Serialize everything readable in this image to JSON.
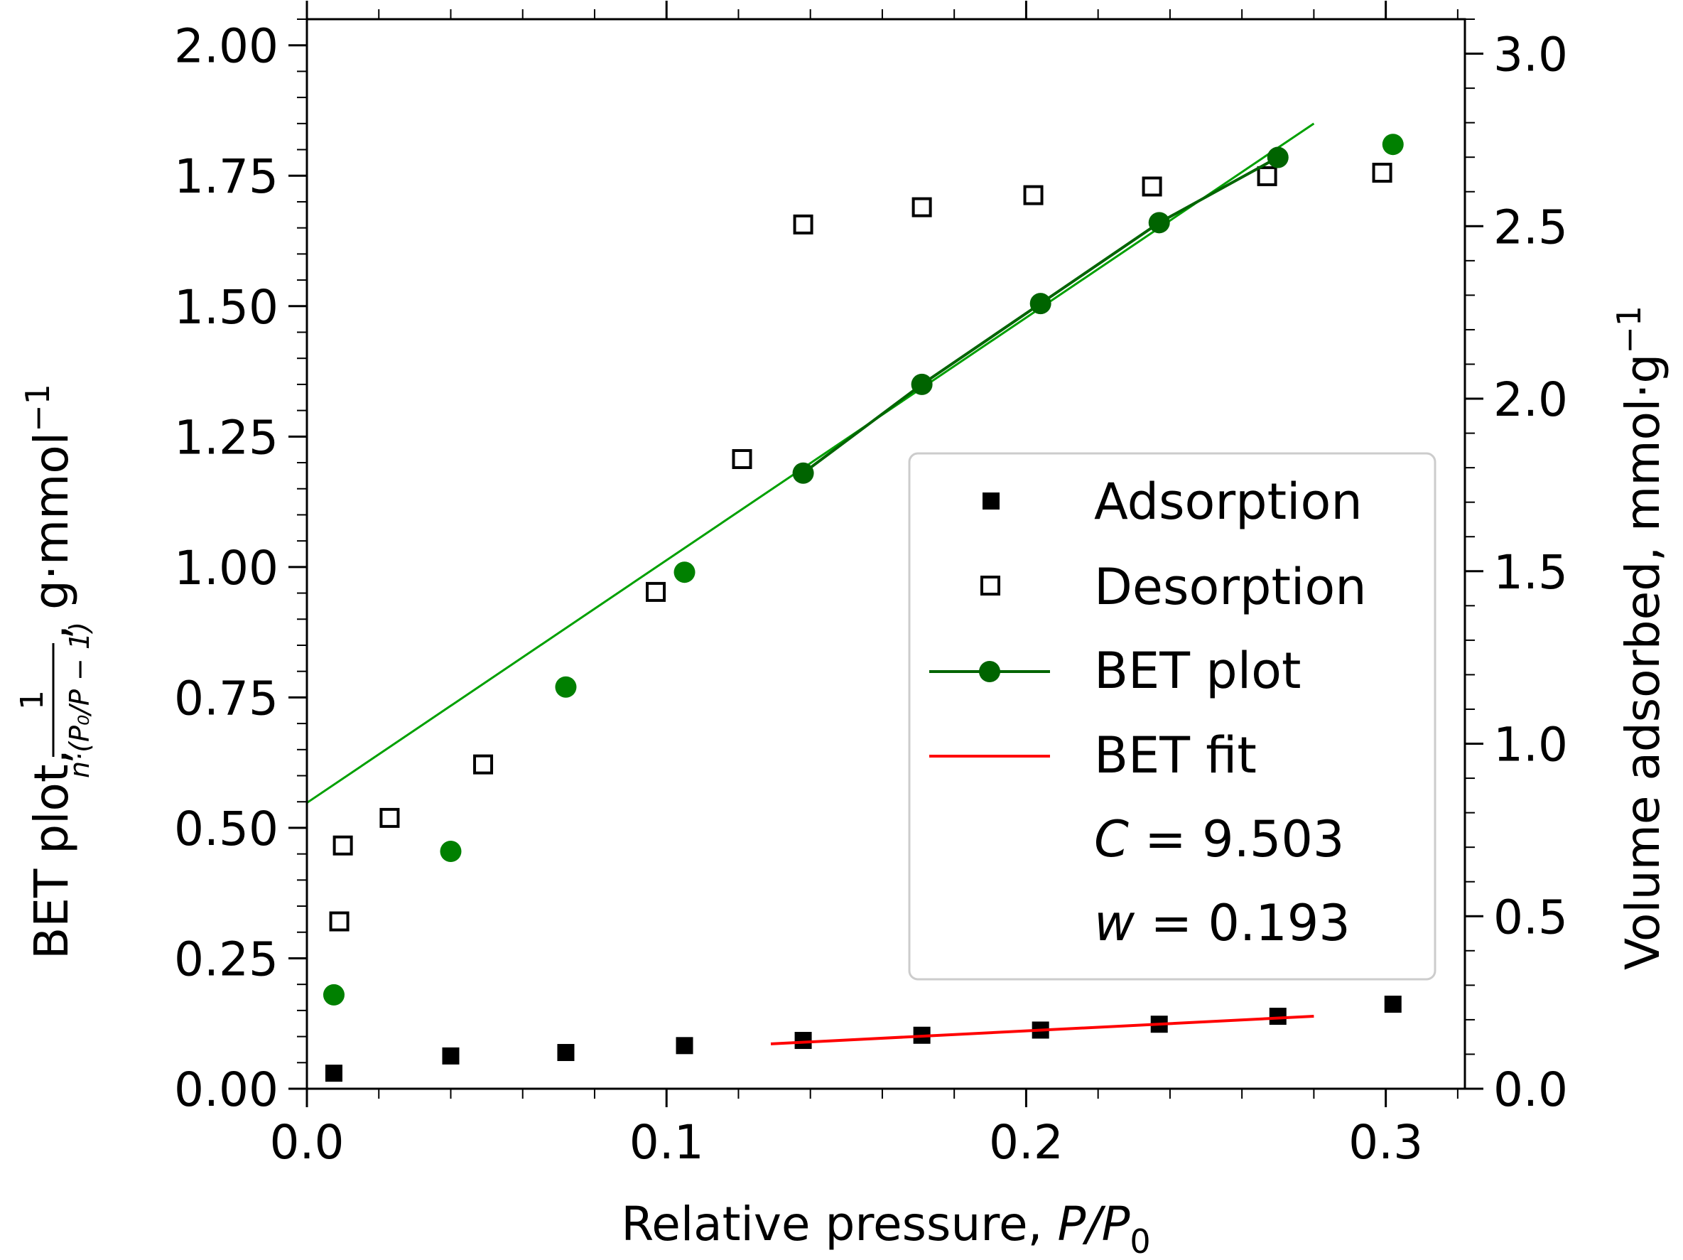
{
  "chart_data": {
    "type": "scatter",
    "xlabel_text": "Relative pressure, ",
    "xlabel_var": "P/P",
    "xlabel_sub": "0",
    "ylabel_left_text": "BET plot, ",
    "ylabel_left_frac_num": "1",
    "ylabel_left_frac_den": "n·(P₀/P − 1)",
    "ylabel_left_unit": ", g·mmol",
    "ylabel_left_sup": "−1",
    "ylabel_right_text": "Volume adsorbed, mmol·g",
    "ylabel_right_sup": "−1",
    "xlim": [
      0.0,
      0.322
    ],
    "ylim_left": [
      0.0,
      2.05
    ],
    "ylim_right": [
      0.0,
      3.1
    ],
    "x_ticks": [
      "0.0",
      "0.1",
      "0.2",
      "0.3"
    ],
    "x_tick_values": [
      0.0,
      0.1,
      0.2,
      0.3
    ],
    "y_left_ticks": [
      "0.00",
      "0.25",
      "0.50",
      "0.75",
      "1.00",
      "1.25",
      "1.50",
      "1.75",
      "2.00"
    ],
    "y_left_tick_values": [
      0.0,
      0.25,
      0.5,
      0.75,
      1.0,
      1.25,
      1.5,
      1.75,
      2.0
    ],
    "y_right_ticks": [
      "0.0",
      "0.5",
      "1.0",
      "1.5",
      "2.0",
      "2.5",
      "3.0"
    ],
    "y_right_tick_values": [
      0.0,
      0.5,
      1.0,
      1.5,
      2.0,
      2.5,
      3.0
    ],
    "series": [
      {
        "name": "Adsorption",
        "axis": "right",
        "marker": "filled-square",
        "color": "#000000",
        "x": [
          0.0075,
          0.04,
          0.072,
          0.105,
          0.138,
          0.171,
          0.204,
          0.237,
          0.27,
          0.302
        ],
        "y": [
          0.045,
          0.095,
          0.105,
          0.125,
          0.14,
          0.155,
          0.17,
          0.187,
          0.21,
          0.245
        ]
      },
      {
        "name": "Desorption",
        "axis": "right",
        "marker": "open-square",
        "color": "#000000",
        "x": [
          0.009,
          0.01,
          0.023,
          0.049,
          0.097,
          0.121,
          0.138,
          0.171,
          0.202,
          0.235,
          0.267,
          0.299
        ],
        "y": [
          0.485,
          0.705,
          0.785,
          0.94,
          1.44,
          1.825,
          2.505,
          2.555,
          2.59,
          2.615,
          2.645,
          2.655
        ]
      },
      {
        "name": "BET plot",
        "axis": "left",
        "marker": "filled-circle",
        "color": "#008000",
        "line_color": "#006400",
        "x": [
          0.0075,
          0.04,
          0.072,
          0.105,
          0.138,
          0.171,
          0.204,
          0.237,
          0.27,
          0.302
        ],
        "y": [
          0.18,
          0.455,
          0.77,
          0.99,
          1.18,
          1.35,
          1.505,
          1.66,
          1.785,
          1.81
        ],
        "line_from_index": 4,
        "line_to_index": 8
      },
      {
        "name": "BET fit",
        "axis": "right",
        "type": "line",
        "color": "#ff0000",
        "x": [
          0.129,
          0.28
        ],
        "y": [
          0.13,
          0.21
        ]
      }
    ],
    "extra_lines": [
      {
        "name": "bet-fit-extended",
        "axis": "left",
        "color": "#00a000",
        "x": [
          0.0,
          0.28
        ],
        "y": [
          0.548,
          1.85
        ]
      }
    ],
    "legend_position": "center-right",
    "legend_entries": [
      "Adsorption",
      "Desorption",
      "BET plot",
      "BET fit"
    ],
    "annotations": [
      {
        "var": "C",
        "rest": " = 9.503"
      },
      {
        "var": "w",
        "rest": " = 0.193"
      }
    ]
  }
}
